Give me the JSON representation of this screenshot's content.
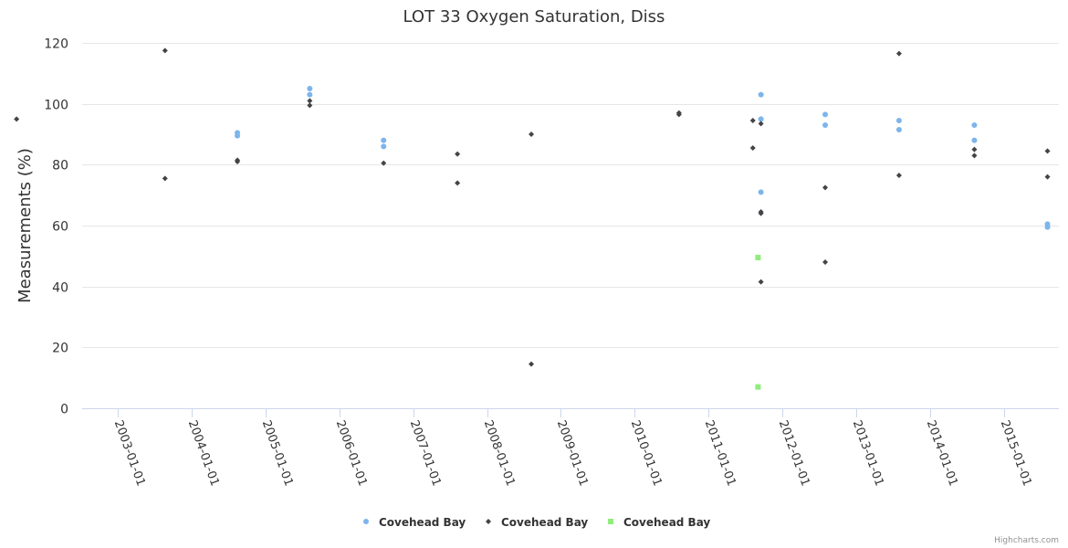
{
  "chart_data": {
    "type": "scatter",
    "title": "LOT 33 Oxygen Saturation, Diss",
    "xlabel": "",
    "ylabel": "Measurements (%)",
    "xaxis_type": "datetime",
    "xlim": [
      "2001-05-01",
      "2015-12-31"
    ],
    "ylim": [
      0,
      120
    ],
    "y_ticks": [
      0,
      20,
      40,
      60,
      80,
      100,
      120
    ],
    "x_tick_labels": [
      "2003-01-01",
      "2004-01-01",
      "2005-01-01",
      "2006-01-01",
      "2007-01-01",
      "2008-01-01",
      "2009-01-01",
      "2010-01-01",
      "2011-01-01",
      "2012-01-01",
      "2013-01-01",
      "2014-01-01",
      "2015-01-01"
    ],
    "grid": true,
    "legend_position": "bottom-center",
    "series": [
      {
        "name": "Covehead Bay",
        "marker": "circle",
        "color": "#7cb5ec",
        "points": [
          {
            "x": 2004.62,
            "y": 90.5
          },
          {
            "x": 2004.62,
            "y": 89.5
          },
          {
            "x": 2005.6,
            "y": 105
          },
          {
            "x": 2005.6,
            "y": 103
          },
          {
            "x": 2006.6,
            "y": 88
          },
          {
            "x": 2006.6,
            "y": 86
          },
          {
            "x": 2011.71,
            "y": 103
          },
          {
            "x": 2011.71,
            "y": 95
          },
          {
            "x": 2011.71,
            "y": 71
          },
          {
            "x": 2012.58,
            "y": 96.5
          },
          {
            "x": 2012.58,
            "y": 93
          },
          {
            "x": 2013.58,
            "y": 94.5
          },
          {
            "x": 2013.58,
            "y": 91.5
          },
          {
            "x": 2014.6,
            "y": 93
          },
          {
            "x": 2014.6,
            "y": 88
          },
          {
            "x": 2015.59,
            "y": 60.5
          },
          {
            "x": 2015.59,
            "y": 59.5
          }
        ]
      },
      {
        "name": "Covehead Bay",
        "marker": "diamond",
        "color": "#434348",
        "points": [
          {
            "x": 2001.63,
            "y": 95
          },
          {
            "x": 2003.64,
            "y": 117.5
          },
          {
            "x": 2003.64,
            "y": 75.5
          },
          {
            "x": 2004.62,
            "y": 81.5
          },
          {
            "x": 2004.62,
            "y": 81
          },
          {
            "x": 2005.6,
            "y": 101
          },
          {
            "x": 2005.6,
            "y": 99.5
          },
          {
            "x": 2006.6,
            "y": 80.5
          },
          {
            "x": 2007.6,
            "y": 83.5
          },
          {
            "x": 2007.6,
            "y": 74
          },
          {
            "x": 2008.6,
            "y": 90
          },
          {
            "x": 2008.6,
            "y": 14.5
          },
          {
            "x": 2010.6,
            "y": 97
          },
          {
            "x": 2010.6,
            "y": 96.5
          },
          {
            "x": 2011.6,
            "y": 94.5
          },
          {
            "x": 2011.6,
            "y": 85.5
          },
          {
            "x": 2011.71,
            "y": 93.5
          },
          {
            "x": 2011.71,
            "y": 64.5
          },
          {
            "x": 2011.71,
            "y": 64
          },
          {
            "x": 2011.71,
            "y": 41.5
          },
          {
            "x": 2012.58,
            "y": 72.5
          },
          {
            "x": 2012.58,
            "y": 48
          },
          {
            "x": 2013.58,
            "y": 116.5
          },
          {
            "x": 2013.58,
            "y": 76.5
          },
          {
            "x": 2014.6,
            "y": 85
          },
          {
            "x": 2014.6,
            "y": 83
          },
          {
            "x": 2015.59,
            "y": 84.5
          },
          {
            "x": 2015.59,
            "y": 76
          }
        ]
      },
      {
        "name": "Covehead Bay",
        "marker": "square",
        "color": "#90ed7d",
        "points": [
          {
            "x": 2011.67,
            "y": 49.5
          },
          {
            "x": 2011.67,
            "y": 7
          }
        ]
      }
    ]
  },
  "credits": "Highcharts.com"
}
